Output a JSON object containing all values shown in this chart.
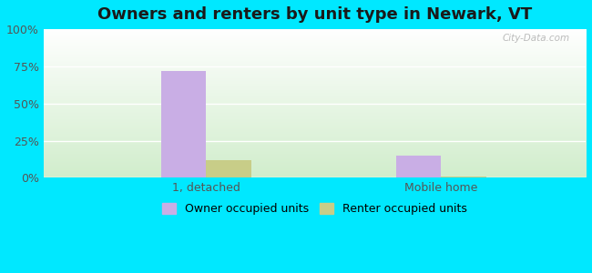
{
  "title": "Owners and renters by unit type in Newark, VT",
  "categories": [
    "1, detached",
    "Mobile home"
  ],
  "owner_values": [
    72,
    15
  ],
  "renter_values": [
    12,
    1
  ],
  "owner_color": "#c9aee5",
  "renter_color": "#c8cd88",
  "bg_outer": "#00e8ff",
  "yticks": [
    0,
    25,
    50,
    75,
    100
  ],
  "bar_width": 0.25,
  "watermark": "City-Data.com",
  "legend_labels": [
    "Owner occupied units",
    "Renter occupied units"
  ],
  "title_fontsize": 13,
  "tick_fontsize": 9,
  "legend_fontsize": 9
}
